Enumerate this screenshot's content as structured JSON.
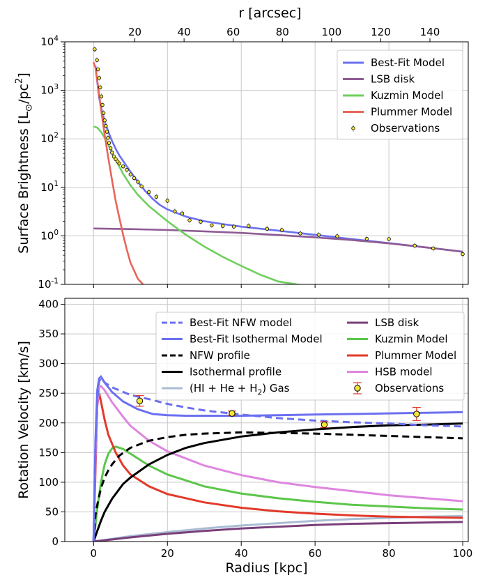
{
  "chart_data": [
    {
      "type": "line",
      "ylabel": "Surface Brightness [L_⊙/pc^2]",
      "yscale": "log",
      "ylim": [
        0.1,
        10000
      ],
      "xlim": [
        -7.8,
        101.5
      ],
      "x_unit": "kpc (bottom axis shared)",
      "top_axis": {
        "label": "r [arcsec]",
        "ticks": [
          "20",
          "40",
          "60",
          "80",
          "100",
          "120",
          "140"
        ]
      },
      "yticks": [
        "10^{-1}",
        "10^{0}",
        "10^{1}",
        "10^{2}",
        "10^{3}",
        "10^{4}"
      ],
      "grid": true,
      "legend_position": "top-right",
      "series": [
        {
          "name": "Best-Fit Model",
          "color": "#6b70f0",
          "kind": "line",
          "x": [
            0.5,
            1,
            1.5,
            2,
            3,
            4,
            5,
            6,
            7,
            8,
            9,
            10,
            12,
            14,
            16,
            18,
            20,
            25,
            30,
            35,
            40,
            50,
            60,
            70,
            80,
            90,
            100
          ],
          "y": [
            3200,
            1500,
            700,
            450,
            230,
            140,
            90,
            62,
            45,
            35,
            27,
            21,
            13,
            8.4,
            5.8,
            4.3,
            3.5,
            2.5,
            2.0,
            1.75,
            1.55,
            1.28,
            1.05,
            0.86,
            0.71,
            0.58,
            0.47
          ]
        },
        {
          "name": "LSB disk",
          "color": "#8e5b94",
          "kind": "line",
          "x": [
            0,
            10,
            20,
            30,
            40,
            50,
            60,
            70,
            80,
            90,
            100
          ],
          "y": [
            1.42,
            1.38,
            1.32,
            1.24,
            1.15,
            1.04,
            0.93,
            0.82,
            0.7,
            0.58,
            0.47
          ]
        },
        {
          "name": "Kuzmin Model",
          "color": "#6fcf5c",
          "kind": "line",
          "x": [
            0,
            1,
            2,
            3,
            4,
            5,
            6,
            8,
            10,
            12,
            15,
            20,
            25,
            30,
            35,
            40,
            45,
            50,
            55,
            56
          ],
          "y": [
            180,
            170,
            140,
            105,
            75,
            52,
            37,
            19,
            11,
            7,
            4.1,
            2.0,
            1.05,
            0.6,
            0.37,
            0.24,
            0.16,
            0.115,
            0.1,
            0.098
          ]
        },
        {
          "name": "Plummer Model",
          "color": "#e8655a",
          "kind": "line",
          "x": [
            0,
            0.5,
            1,
            1.5,
            2,
            3,
            4,
            5,
            6,
            7,
            8,
            9,
            10,
            12,
            13.5
          ],
          "y": [
            3800,
            2900,
            1600,
            800,
            420,
            120,
            40,
            14,
            5.2,
            2.3,
            1.05,
            0.52,
            0.28,
            0.13,
            0.098
          ]
        },
        {
          "name": "Observations",
          "color": "#f5e33b",
          "kind": "points",
          "x": [
            0.3,
            0.9,
            1.2,
            1.5,
            1.8,
            2.1,
            2.4,
            2.7,
            3.0,
            3.3,
            3.6,
            3.9,
            4.2,
            4.6,
            5.0,
            5.5,
            6.0,
            6.5,
            7.0,
            8.0,
            9.0,
            10.0,
            11.0,
            12.0,
            13.0,
            15.0,
            17.0,
            20.0,
            22.0,
            24.0,
            26.0,
            29.0,
            32.0,
            35.0,
            38.0,
            42.0,
            47.0,
            51.0,
            56.0,
            61.0,
            66.0,
            74.0,
            80.0,
            87.0,
            92.0,
            100.0
          ],
          "y": [
            7000,
            4200,
            2700,
            1800,
            1150,
            750,
            500,
            340,
            240,
            185,
            140,
            105,
            82,
            64,
            52,
            43,
            38,
            34,
            31,
            27,
            23,
            18.5,
            15.5,
            13,
            10.5,
            8,
            6.4,
            5.3,
            3.2,
            2.9,
            2.1,
            1.95,
            1.65,
            1.6,
            1.55,
            1.6,
            1.4,
            1.32,
            1.12,
            1.05,
            0.98,
            0.87,
            0.86,
            0.63,
            0.55,
            0.42
          ]
        }
      ]
    },
    {
      "type": "line",
      "xlabel": "Radius [kpc]",
      "ylabel": "Rotation Velocity [km/s]",
      "xlim": [
        -7.8,
        101.5
      ],
      "ylim": [
        0,
        410
      ],
      "xticks": [
        "0",
        "20",
        "40",
        "60",
        "80",
        "100"
      ],
      "yticks": [
        "0",
        "50",
        "100",
        "150",
        "200",
        "250",
        "300",
        "350",
        "400"
      ],
      "grid": true,
      "legend_position": "top",
      "series": [
        {
          "name": "Best-Fit NFW model",
          "color": "#6b70f0",
          "dash": "dashed",
          "x": [
            0,
            0.5,
            1,
            1.5,
            2,
            3,
            5,
            10,
            15,
            20,
            25,
            30,
            40,
            50,
            60,
            70,
            80,
            90,
            100
          ],
          "y": [
            0,
            160,
            240,
            270,
            275,
            268,
            260,
            247,
            240,
            232,
            226,
            221,
            214,
            208,
            204,
            201,
            199,
            196,
            194
          ]
        },
        {
          "name": "Best-Fit Isothermal Model",
          "color": "#6b70f0",
          "dash": "solid",
          "x": [
            0,
            0.5,
            1,
            1.5,
            2,
            3,
            5,
            8,
            12,
            16,
            20,
            25,
            30,
            40,
            50,
            60,
            70,
            80,
            90,
            100
          ],
          "y": [
            0,
            170,
            255,
            275,
            278,
            268,
            252,
            236,
            223,
            215,
            213,
            212,
            212,
            212,
            213,
            214,
            215,
            216,
            217,
            218
          ]
        },
        {
          "name": "NFW profile",
          "color": "#000000",
          "dash": "dashed",
          "x": [
            0,
            0.5,
            1,
            2,
            3,
            4,
            5,
            7,
            10,
            15,
            20,
            25,
            30,
            40,
            50,
            60,
            70,
            80,
            90,
            100
          ],
          "y": [
            0,
            45,
            62,
            90,
            108,
            120,
            130,
            145,
            158,
            170,
            176,
            180,
            182,
            184,
            183,
            182,
            180,
            178,
            176,
            174
          ]
        },
        {
          "name": "Isothermal profile",
          "color": "#000000",
          "dash": "solid",
          "x": [
            0,
            1,
            2,
            3,
            5,
            8,
            10,
            15,
            20,
            25,
            30,
            40,
            50,
            60,
            70,
            80,
            90,
            100
          ],
          "y": [
            0,
            18,
            35,
            50,
            72,
            97,
            108,
            130,
            146,
            158,
            166,
            177,
            184,
            189,
            193,
            196,
            197,
            199
          ]
        },
        {
          "name": "(HI + He + H_2) Gas",
          "color": "#aabdd4",
          "dash": "solid",
          "x": [
            0,
            10,
            20,
            30,
            40,
            50,
            60,
            70,
            80,
            90,
            100
          ],
          "y": [
            0,
            9,
            16,
            22,
            27,
            31,
            35,
            38,
            40,
            42,
            43
          ]
        },
        {
          "name": "LSB disk",
          "color": "#7a3f7a",
          "dash": "solid",
          "x": [
            0,
            10,
            20,
            30,
            40,
            50,
            60,
            70,
            80,
            90,
            100
          ],
          "y": [
            0,
            7,
            13,
            18,
            22,
            25,
            28,
            30,
            31,
            32,
            33
          ]
        },
        {
          "name": "Kuzmin Model",
          "color": "#5cc64a",
          "dash": "solid",
          "x": [
            0,
            1,
            2,
            3,
            4,
            5,
            6,
            8,
            10,
            15,
            20,
            30,
            40,
            50,
            60,
            70,
            80,
            90,
            100
          ],
          "y": [
            0,
            55,
            100,
            130,
            148,
            157,
            160,
            156,
            148,
            128,
            113,
            93,
            81,
            73,
            67,
            62,
            59,
            56,
            54
          ]
        },
        {
          "name": "Plummer Model",
          "color": "#e23a2a",
          "dash": "solid",
          "x": [
            0,
            0.5,
            1,
            1.5,
            2,
            3,
            4,
            6,
            8,
            10,
            15,
            20,
            30,
            40,
            50,
            60,
            70,
            80,
            90,
            100
          ],
          "y": [
            0,
            120,
            230,
            250,
            236,
            205,
            180,
            150,
            128,
            113,
            93,
            80,
            66,
            57,
            51,
            47,
            44,
            42,
            41,
            40
          ]
        },
        {
          "name": "HSB model",
          "color": "#de86e0",
          "dash": "solid",
          "x": [
            0,
            0.5,
            1,
            1.5,
            2,
            3,
            5,
            8,
            10,
            15,
            20,
            25,
            30,
            40,
            50,
            60,
            70,
            80,
            90,
            100
          ],
          "y": [
            0,
            140,
            230,
            260,
            262,
            255,
            235,
            210,
            195,
            170,
            152,
            140,
            128,
            112,
            100,
            92,
            85,
            78,
            73,
            68
          ]
        },
        {
          "name": "Observations",
          "color": "#f5e33b",
          "kind": "points",
          "x": [
            12.5,
            37.5,
            62.5,
            87.5
          ],
          "y": [
            237,
            216,
            197,
            215
          ],
          "yerr": [
            9,
            4,
            5,
            11
          ]
        }
      ]
    }
  ]
}
